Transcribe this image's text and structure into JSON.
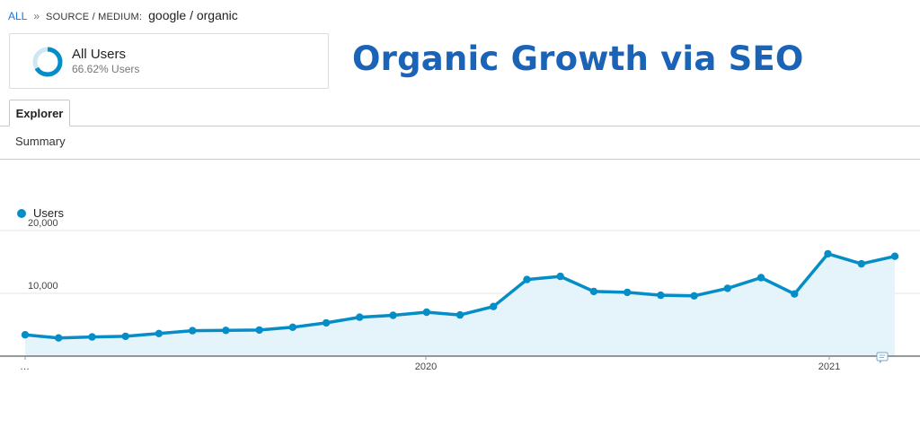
{
  "breadcrumb": {
    "root": "ALL",
    "separator": "»",
    "dimension": "SOURCE / MEDIUM:",
    "value": "google / organic"
  },
  "segment": {
    "name": "All Users",
    "percent_text": "66.62% Users",
    "percent_value": 66.62
  },
  "headline": "Organic Growth via SEO",
  "tabs": [
    {
      "label": "Explorer",
      "active": true
    }
  ],
  "subtab": "Summary",
  "colors": {
    "accent": "#058dc7",
    "area": "#e5f3fb",
    "headline": "#1a63b7"
  },
  "chart_data": {
    "type": "area",
    "series": [
      {
        "name": "Users",
        "values": [
          3400,
          2900,
          3050,
          3150,
          3600,
          4050,
          4100,
          4150,
          4600,
          5300,
          6200,
          6500,
          7000,
          6550,
          7900,
          12200,
          12700,
          10300,
          10150,
          9700,
          9600,
          10800,
          12500,
          9900,
          16300,
          14700,
          15900
        ]
      }
    ],
    "x_tick_labels": [
      "…",
      "2020",
      "2021"
    ],
    "y_ticks": [
      10000,
      20000
    ],
    "y_tick_labels": [
      "10,000",
      "20,000"
    ],
    "ylim": [
      0,
      20000
    ],
    "grid": true,
    "legend": "top-left"
  }
}
